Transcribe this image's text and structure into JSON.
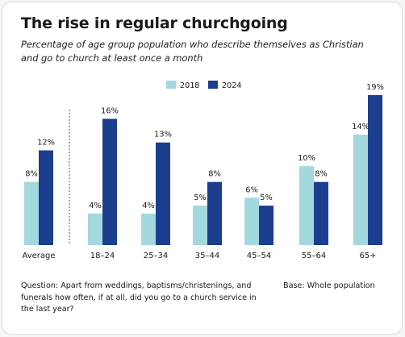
{
  "colors": {
    "2018": "#a3d9de",
    "2024": "#1b3e8f",
    "divider": "#555555"
  },
  "text": {
    "title": "The rise in regular churchgoing",
    "subtitle": "Percentage of age group population who describe themselves as Christian and go to church at least once a month",
    "footnote": "Question: Apart from weddings, baptisms/christenings, and funerals how often, if at all, did you go to a church service in the last year?",
    "base": "Base: Whole population"
  },
  "chart_data": {
    "type": "bar",
    "title": "The rise in regular churchgoing",
    "subtitle": "Percentage of age group population who describe themselves as Christian and go to church at least once a month",
    "categories": [
      "Average",
      "18–24",
      "25–34",
      "35–44",
      "45–54",
      "55–64",
      "65+"
    ],
    "series": [
      {
        "name": "2018",
        "values": [
          8,
          4,
          4,
          5,
          6,
          10,
          14
        ],
        "labels": [
          "8%",
          "4%",
          "4%",
          "5%",
          "6%",
          "10%",
          "14%"
        ]
      },
      {
        "name": "2024",
        "values": [
          12,
          16,
          13,
          8,
          5,
          8,
          19
        ],
        "labels": [
          "12%",
          "16%",
          "13%",
          "8%",
          "5%",
          "8%",
          "19%"
        ]
      }
    ],
    "ylim": [
      0,
      19
    ],
    "legend": "top-center",
    "grid": false,
    "xlabel": "",
    "ylabel": ""
  }
}
